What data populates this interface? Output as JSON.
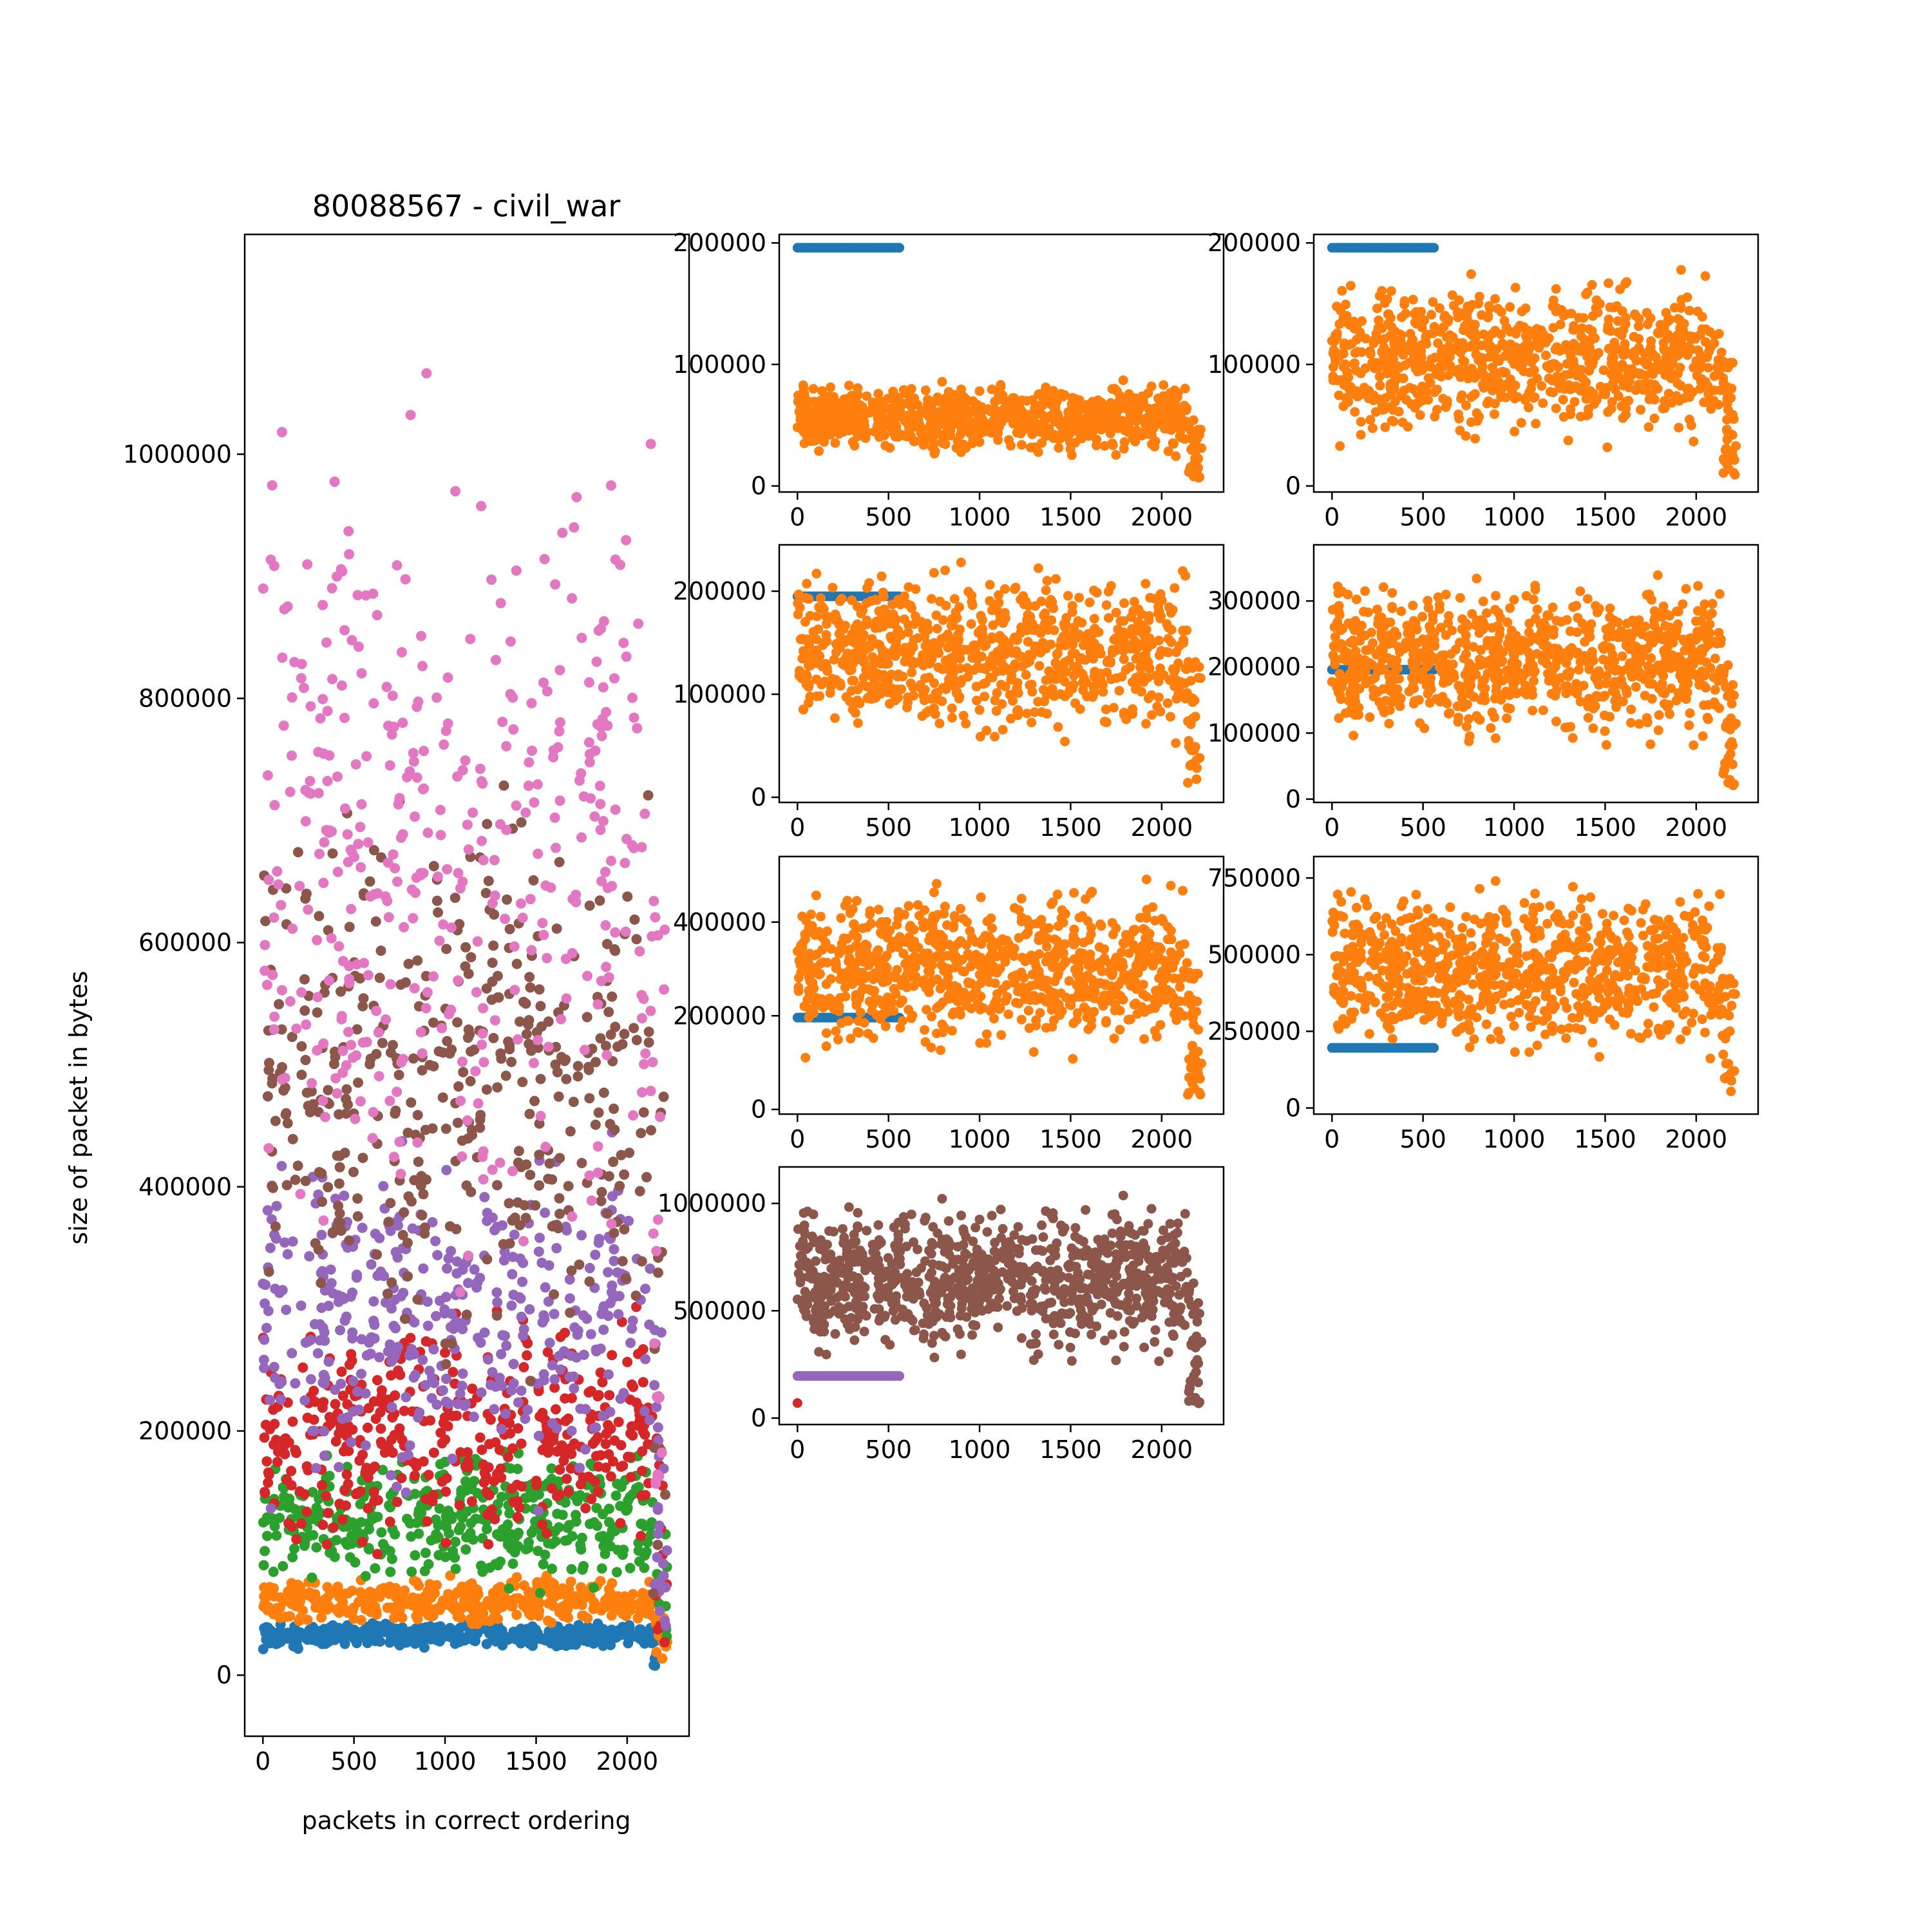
{
  "colors": {
    "blue": "#1f77b4",
    "orange": "#ff7f0e",
    "green": "#2ca02c",
    "red": "#d62728",
    "purple": "#9467bd",
    "brown": "#8c564b",
    "pink": "#e377c2"
  },
  "chart_data": [
    {
      "type": "scatter",
      "title": "80088567 - civil_war",
      "xlabel": "packets in correct ordering",
      "ylabel": "size of packet in bytes",
      "xlim": [
        -100,
        2340
      ],
      "ylim": [
        -50000,
        1180000
      ],
      "xticks": [
        0,
        500,
        1000,
        1500,
        2000
      ],
      "yticks": [
        0,
        200000,
        400000,
        600000,
        800000,
        1000000
      ],
      "x_range": [
        0,
        2220
      ],
      "series": [
        {
          "color": "blue",
          "y_range": [
            20000,
            45000
          ]
        },
        {
          "color": "orange",
          "y_range": [
            35000,
            85000
          ]
        },
        {
          "color": "green",
          "y_range": [
            60000,
            200000
          ]
        },
        {
          "color": "red",
          "y_range": [
            80000,
            320000
          ]
        },
        {
          "color": "purple",
          "y_range": [
            120000,
            460000
          ]
        },
        {
          "color": "brown",
          "y_range": [
            200000,
            780000
          ]
        },
        {
          "color": "pink",
          "y_range": [
            230000,
            1120000
          ]
        }
      ]
    },
    {
      "type": "scatter",
      "xlim": [
        -100,
        2340
      ],
      "ylim": [
        -5000,
        207000
      ],
      "xticks": [
        0,
        500,
        1000,
        1500,
        2000
      ],
      "yticks": [
        0,
        100000,
        200000
      ],
      "series": [
        {
          "color": "blue",
          "constant": 196000,
          "x_range": [
            0,
            560
          ]
        },
        {
          "color": "orange",
          "x_range": [
            0,
            2220
          ],
          "y_range": [
            20000,
            92000
          ]
        }
      ]
    },
    {
      "type": "scatter",
      "xlim": [
        -100,
        2340
      ],
      "ylim": [
        -5000,
        207000
      ],
      "xticks": [
        0,
        500,
        1000,
        1500,
        2000
      ],
      "yticks": [
        0,
        100000,
        200000
      ],
      "series": [
        {
          "color": "blue",
          "constant": 196000,
          "x_range": [
            0,
            560
          ]
        },
        {
          "color": "orange",
          "x_range": [
            0,
            2220
          ],
          "y_range": [
            25000,
            185000
          ]
        }
      ]
    },
    {
      "type": "scatter",
      "xlim": [
        -100,
        2340
      ],
      "ylim": [
        -5000,
        245000
      ],
      "xticks": [
        0,
        500,
        1000,
        1500,
        2000
      ],
      "yticks": [
        0,
        100000,
        200000
      ],
      "series": [
        {
          "color": "blue",
          "constant": 195000,
          "x_range": [
            0,
            560
          ]
        },
        {
          "color": "orange",
          "x_range": [
            0,
            2220
          ],
          "y_range": [
            40000,
            240000
          ]
        }
      ]
    },
    {
      "type": "scatter",
      "xlim": [
        -100,
        2340
      ],
      "ylim": [
        -5000,
        385000
      ],
      "xticks": [
        0,
        500,
        1000,
        1500,
        2000
      ],
      "yticks": [
        0,
        100000,
        200000,
        300000
      ],
      "series": [
        {
          "color": "blue",
          "constant": 196000,
          "x_range": [
            0,
            560
          ]
        },
        {
          "color": "orange",
          "x_range": [
            0,
            2220
          ],
          "y_range": [
            60000,
            360000
          ]
        }
      ]
    },
    {
      "type": "scatter",
      "xlim": [
        -100,
        2340
      ],
      "ylim": [
        -10000,
        540000
      ],
      "xticks": [
        0,
        500,
        1000,
        1500,
        2000
      ],
      "yticks": [
        0,
        200000,
        400000
      ],
      "series": [
        {
          "color": "blue",
          "constant": 196000,
          "x_range": [
            0,
            560
          ]
        },
        {
          "color": "orange",
          "x_range": [
            0,
            2220
          ],
          "y_range": [
            90000,
            510000
          ]
        }
      ]
    },
    {
      "type": "scatter",
      "xlim": [
        -100,
        2340
      ],
      "ylim": [
        -20000,
        820000
      ],
      "xticks": [
        0,
        500,
        1000,
        1500,
        2000
      ],
      "yticks": [
        0,
        250000,
        500000,
        750000
      ],
      "yticklabels": [
        "0",
        "250000",
        "500000",
        "750000"
      ],
      "series": [
        {
          "color": "blue",
          "constant": 196000,
          "x_range": [
            0,
            560
          ]
        },
        {
          "color": "orange",
          "x_range": [
            0,
            2220
          ],
          "y_range": [
            120000,
            780000
          ]
        }
      ]
    },
    {
      "type": "scatter",
      "xlim": [
        -100,
        2340
      ],
      "ylim": [
        -30000,
        1170000
      ],
      "xticks": [
        0,
        500,
        1000,
        1500,
        2000
      ],
      "yticks": [
        0,
        500000,
        1000000
      ],
      "series": [
        {
          "color": "red",
          "points": [
            [
              0,
              70000
            ]
          ]
        },
        {
          "color": "purple",
          "constant": 196000,
          "x_range": [
            0,
            560
          ]
        },
        {
          "color": "brown",
          "x_range": [
            0,
            2220
          ],
          "y_range": [
            200000,
            1100000
          ]
        }
      ]
    }
  ]
}
